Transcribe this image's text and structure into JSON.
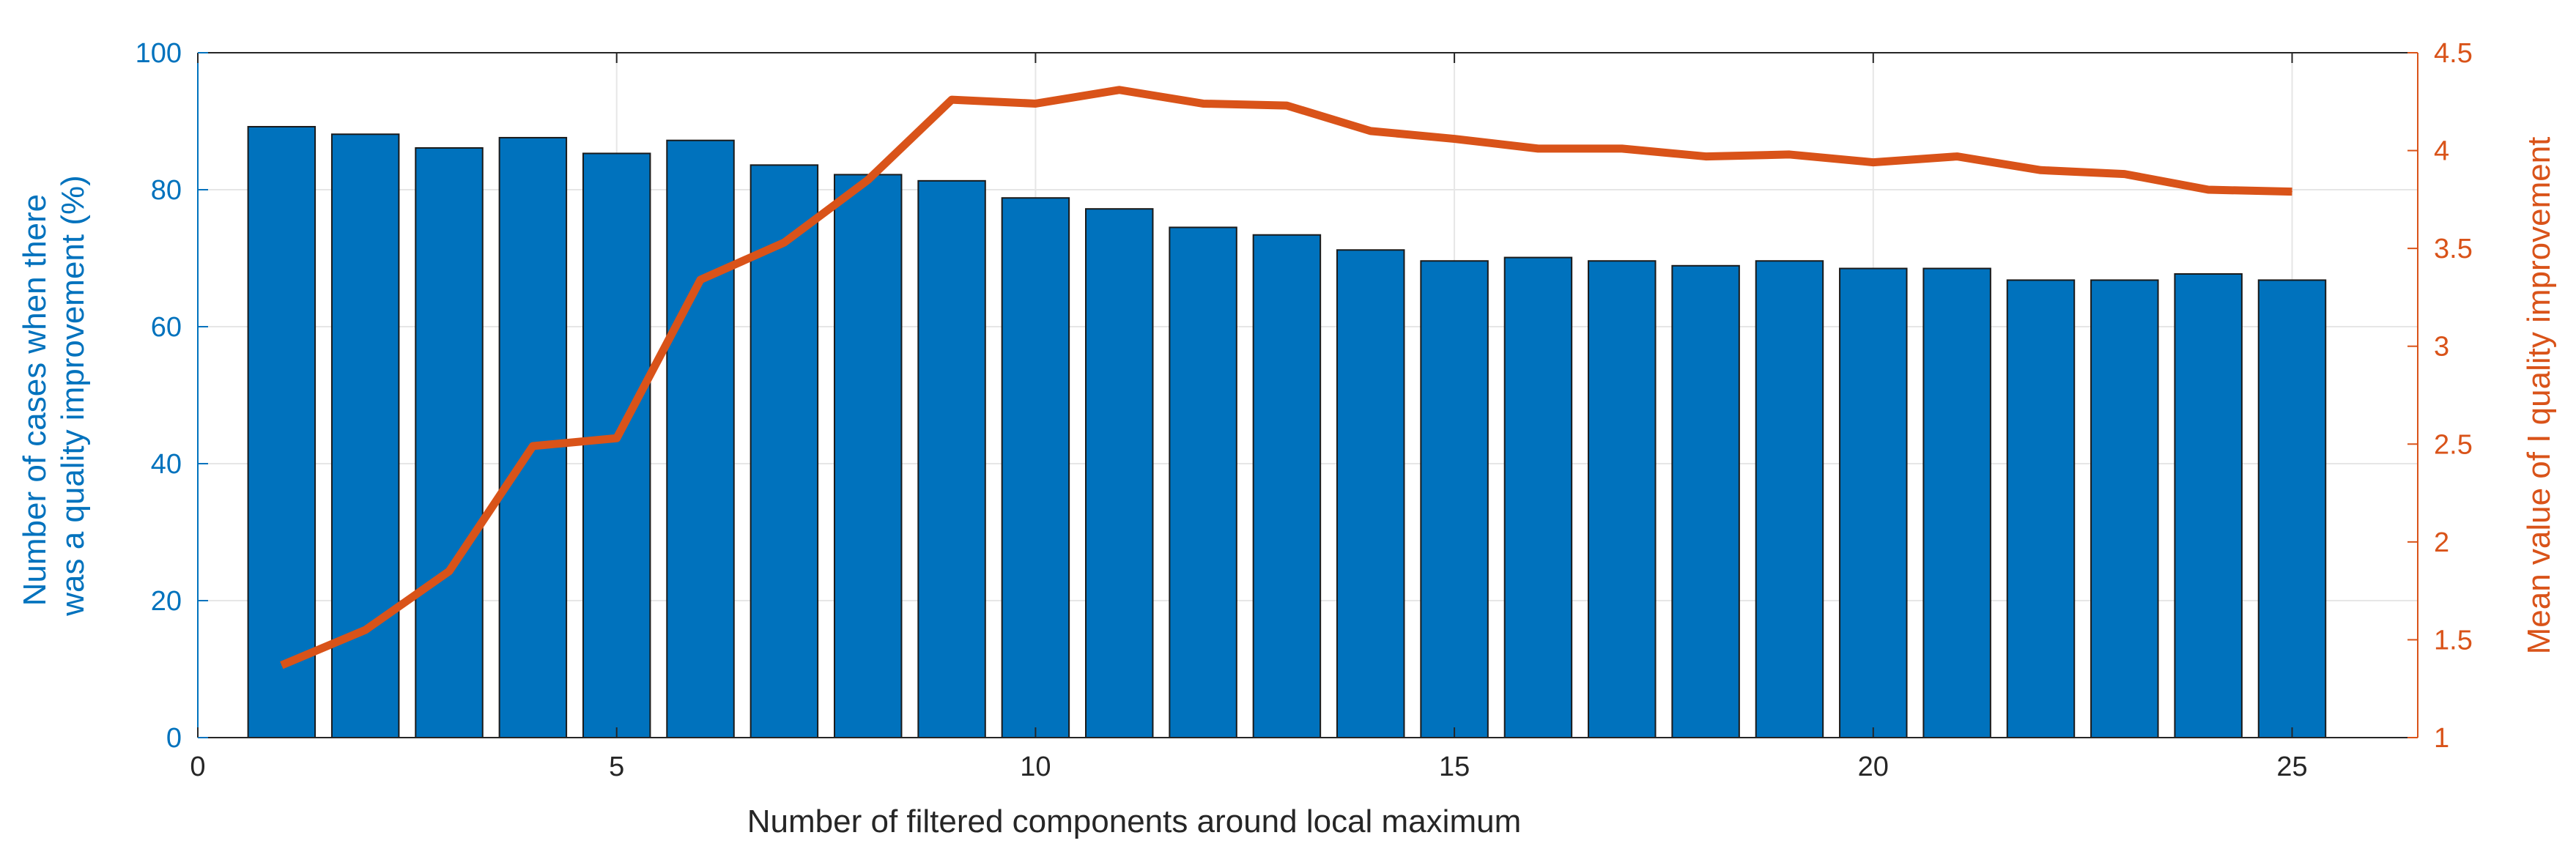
{
  "chart_data": {
    "type": "bar",
    "x": [
      1,
      2,
      3,
      4,
      5,
      6,
      7,
      8,
      9,
      10,
      11,
      12,
      13,
      14,
      15,
      16,
      17,
      18,
      19,
      20,
      21,
      22,
      23,
      24,
      25
    ],
    "series": [
      {
        "type": "bar",
        "axis": "left",
        "color": "#0072BD",
        "values": [
          89.2,
          88.1,
          86.1,
          87.6,
          85.3,
          87.2,
          83.6,
          82.2,
          81.3,
          78.8,
          77.2,
          74.5,
          73.4,
          71.2,
          69.6,
          70.1,
          69.6,
          68.9,
          69.6,
          68.5,
          68.5,
          66.8,
          66.8,
          67.7,
          66.8
        ]
      },
      {
        "type": "line",
        "axis": "right",
        "color": "#D95319",
        "values": [
          1.37,
          1.55,
          1.85,
          2.49,
          2.53,
          3.34,
          3.53,
          3.85,
          4.26,
          4.24,
          4.31,
          4.24,
          4.23,
          4.1,
          4.06,
          4.01,
          4.01,
          3.97,
          3.98,
          3.94,
          3.97,
          3.9,
          3.88,
          3.8,
          3.79
        ]
      }
    ],
    "xlabel": "Number of filtered components around local maximum",
    "ylabel_left": [
      "Number of cases when there",
      "was a quality improvement (%)"
    ],
    "ylabel_right": "Mean value of I quality improvement",
    "xlim": [
      0,
      26.5
    ],
    "ylim_left": [
      0,
      100
    ],
    "ylim_right": [
      1,
      4.5
    ],
    "xticks": [
      0,
      5,
      10,
      15,
      20,
      25
    ],
    "yticks_left": [
      0,
      20,
      40,
      60,
      80,
      100
    ],
    "yticks_right": [
      "1",
      "1.5",
      "2",
      "2.5",
      "3",
      "3.5",
      "4",
      "4.5"
    ],
    "grid": true
  }
}
